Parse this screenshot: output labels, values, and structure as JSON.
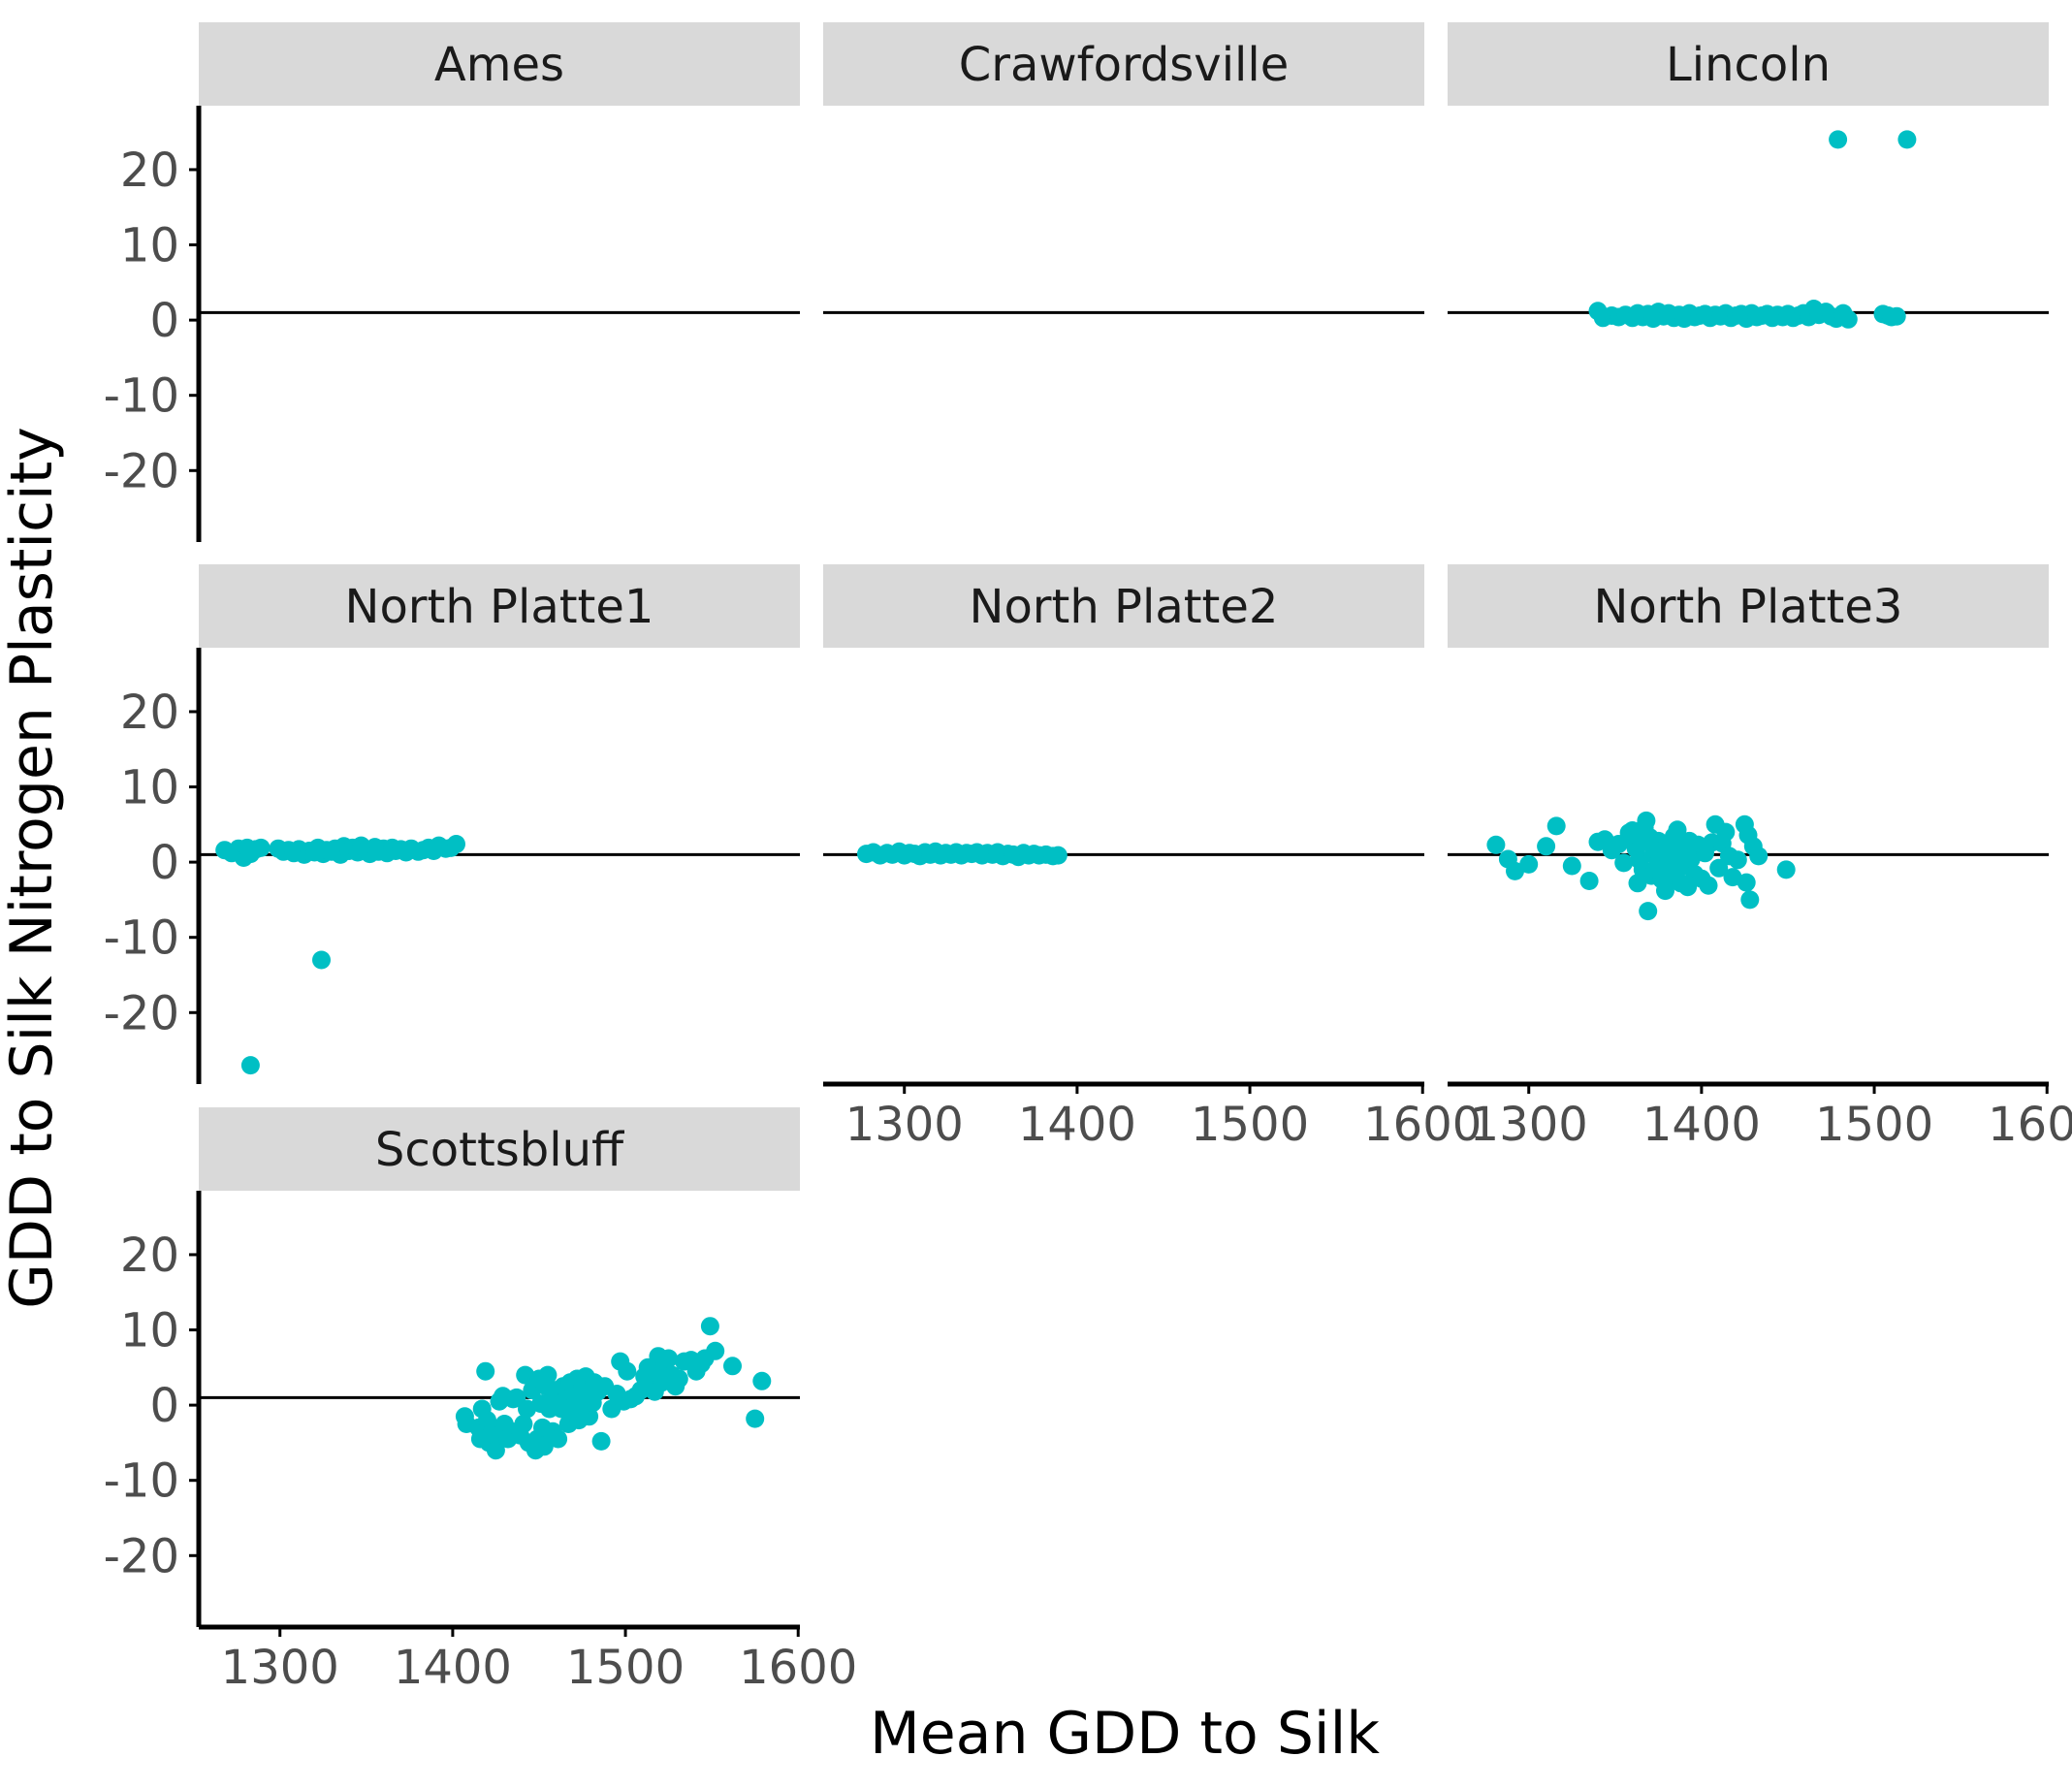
{
  "chart_data": {
    "type": "scatter",
    "title": "",
    "xlabel": "Mean GDD to Silk",
    "ylabel": "GDD to Silk Nitrogen Plasticity",
    "xlim": [
      1253,
      1601
    ],
    "ylim": [
      -29.5,
      28.5
    ],
    "x_ticks": [
      1300,
      1400,
      1500,
      1600
    ],
    "y_ticks": [
      -20,
      -10,
      0,
      10,
      20
    ],
    "x_tick_labels": [
      "1300",
      "1400",
      "1500",
      "1600"
    ],
    "y_tick_labels": [
      "-20",
      "-10",
      "0",
      "10",
      "20"
    ],
    "reference_line_y": 1,
    "grid": false,
    "legend": "none",
    "colors": {
      "points": "#00BFC4",
      "strip": "#D9D9D9",
      "axis": "#000000"
    },
    "facet_layout": {
      "rows": 3,
      "cols": 3
    },
    "panels": [
      {
        "name": "Ames",
        "row": 0,
        "col": 0,
        "points": []
      },
      {
        "name": "Crawfordsville",
        "row": 0,
        "col": 1,
        "points": []
      },
      {
        "name": "Lincoln",
        "row": 0,
        "col": 2,
        "points": [
          [
            1340,
            1.2
          ],
          [
            1343,
            0.3
          ],
          [
            1348,
            0.6
          ],
          [
            1352,
            0.4
          ],
          [
            1356,
            0.7
          ],
          [
            1360,
            0.3
          ],
          [
            1363,
            0.9
          ],
          [
            1366,
            0.4
          ],
          [
            1369,
            0.8
          ],
          [
            1372,
            0.2
          ],
          [
            1375,
            1.1
          ],
          [
            1378,
            0.5
          ],
          [
            1381,
            0.9
          ],
          [
            1384,
            0.3
          ],
          [
            1387,
            0.7
          ],
          [
            1390,
            0.2
          ],
          [
            1393,
            0.9
          ],
          [
            1396,
            0.4
          ],
          [
            1399,
            0.6
          ],
          [
            1402,
            0.8
          ],
          [
            1405,
            0.3
          ],
          [
            1408,
            0.7
          ],
          [
            1411,
            0.5
          ],
          [
            1414,
            0.9
          ],
          [
            1417,
            0.3
          ],
          [
            1420,
            0.6
          ],
          [
            1423,
            0.8
          ],
          [
            1426,
            0.2
          ],
          [
            1429,
            0.9
          ],
          [
            1432,
            0.4
          ],
          [
            1435,
            0.6
          ],
          [
            1438,
            0.8
          ],
          [
            1441,
            0.3
          ],
          [
            1444,
            0.7
          ],
          [
            1447,
            0.4
          ],
          [
            1450,
            0.8
          ],
          [
            1453,
            0.3
          ],
          [
            1456,
            0.6
          ],
          [
            1459,
            0.9
          ],
          [
            1462,
            0.4
          ],
          [
            1465,
            1.5
          ],
          [
            1468,
            0.7
          ],
          [
            1472,
            1.1
          ],
          [
            1475,
            0.5
          ],
          [
            1478,
            0.2
          ],
          [
            1482,
            0.9
          ],
          [
            1485,
            0.1
          ],
          [
            1505,
            0.8
          ],
          [
            1508,
            0.6
          ],
          [
            1510,
            0.4
          ],
          [
            1513,
            0.5
          ],
          [
            1479,
            24
          ],
          [
            1519,
            24
          ]
        ]
      },
      {
        "name": "North Platte1",
        "row": 1,
        "col": 0,
        "points": [
          [
            1268,
            1.6
          ],
          [
            1272,
            1.2
          ],
          [
            1276,
            1.8
          ],
          [
            1279,
            0.6
          ],
          [
            1281,
            1.9
          ],
          [
            1283,
            1.1
          ],
          [
            1286,
            1.7
          ],
          [
            1289,
            1.9
          ],
          [
            1299,
            1.8
          ],
          [
            1302,
            1.4
          ],
          [
            1305,
            1.6
          ],
          [
            1308,
            1.2
          ],
          [
            1311,
            1.7
          ],
          [
            1314,
            1.0
          ],
          [
            1317,
            1.5
          ],
          [
            1320,
            1.3
          ],
          [
            1322,
            1.9
          ],
          [
            1325,
            1.1
          ],
          [
            1327,
            1.6
          ],
          [
            1330,
            1.4
          ],
          [
            1332,
            1.8
          ],
          [
            1335,
            1.0
          ],
          [
            1337,
            2.1
          ],
          [
            1340,
            1.5
          ],
          [
            1342,
            1.9
          ],
          [
            1345,
            1.3
          ],
          [
            1347,
            2.2
          ],
          [
            1350,
            1.6
          ],
          [
            1352,
            1.1
          ],
          [
            1355,
            2.0
          ],
          [
            1357,
            1.4
          ],
          [
            1360,
            1.8
          ],
          [
            1362,
            1.2
          ],
          [
            1365,
            1.9
          ],
          [
            1367,
            1.5
          ],
          [
            1370,
            1.7
          ],
          [
            1373,
            1.3
          ],
          [
            1376,
            1.8
          ],
          [
            1380,
            1.4
          ],
          [
            1383,
            1.6
          ],
          [
            1386,
            1.9
          ],
          [
            1389,
            1.5
          ],
          [
            1392,
            2.2
          ],
          [
            1396,
            1.8
          ],
          [
            1399,
            1.9
          ],
          [
            1402,
            2.4
          ],
          [
            1324,
            -13
          ],
          [
            1283,
            -27
          ]
        ]
      },
      {
        "name": "North Platte2",
        "row": 1,
        "col": 1,
        "points": [
          [
            1278,
            1.1
          ],
          [
            1282,
            1.3
          ],
          [
            1286,
            0.9
          ],
          [
            1290,
            1.2
          ],
          [
            1293,
            1.0
          ],
          [
            1297,
            1.4
          ],
          [
            1300,
            0.9
          ],
          [
            1303,
            1.2
          ],
          [
            1306,
            1.1
          ],
          [
            1309,
            0.8
          ],
          [
            1312,
            1.3
          ],
          [
            1315,
            1.0
          ],
          [
            1318,
            1.4
          ],
          [
            1321,
            0.9
          ],
          [
            1324,
            1.2
          ],
          [
            1327,
            1.0
          ],
          [
            1330,
            1.3
          ],
          [
            1333,
            0.9
          ],
          [
            1336,
            1.2
          ],
          [
            1339,
            1.1
          ],
          [
            1342,
            1.3
          ],
          [
            1345,
            0.9
          ],
          [
            1348,
            1.2
          ],
          [
            1351,
            1.0
          ],
          [
            1354,
            1.3
          ],
          [
            1357,
            0.8
          ],
          [
            1360,
            1.1
          ],
          [
            1363,
            1.0
          ],
          [
            1366,
            0.7
          ],
          [
            1369,
            1.2
          ],
          [
            1372,
            0.9
          ],
          [
            1375,
            1.1
          ],
          [
            1378,
            0.9
          ],
          [
            1382,
            1.0
          ],
          [
            1386,
            0.8
          ],
          [
            1389,
            0.9
          ]
        ]
      },
      {
        "name": "North Platte3",
        "row": 1,
        "col": 2,
        "points": [
          [
            1281,
            2.3
          ],
          [
            1288,
            0.4
          ],
          [
            1292,
            -1.2
          ],
          [
            1310,
            2.1
          ],
          [
            1300,
            -0.3
          ],
          [
            1316,
            4.8
          ],
          [
            1325,
            -0.5
          ],
          [
            1335,
            -2.5
          ],
          [
            1340,
            2.7
          ],
          [
            1344,
            3.0
          ],
          [
            1348,
            1.6
          ],
          [
            1352,
            2.4
          ],
          [
            1355,
            -0.1
          ],
          [
            1358,
            3.9
          ],
          [
            1360,
            4.2
          ],
          [
            1361,
            3.0
          ],
          [
            1362,
            1.8
          ],
          [
            1363,
            -2.8
          ],
          [
            1364,
            0.3
          ],
          [
            1365,
            2.6
          ],
          [
            1366,
            -1.0
          ],
          [
            1367,
            4.6
          ],
          [
            1368,
            5.5
          ],
          [
            1369,
            -6.5
          ],
          [
            1370,
            3.3
          ],
          [
            1371,
            -1.8
          ],
          [
            1372,
            1.0
          ],
          [
            1373,
            2.2
          ],
          [
            1374,
            -0.8
          ],
          [
            1375,
            2.8
          ],
          [
            1376,
            0.6
          ],
          [
            1377,
            -2.3
          ],
          [
            1378,
            1.6
          ],
          [
            1379,
            -3.8
          ],
          [
            1380,
            2.4
          ],
          [
            1381,
            0.1
          ],
          [
            1382,
            -2.0
          ],
          [
            1383,
            1.8
          ],
          [
            1384,
            3.4
          ],
          [
            1385,
            -1.4
          ],
          [
            1386,
            4.3
          ],
          [
            1387,
            0.8
          ],
          [
            1388,
            -2.8
          ],
          [
            1389,
            2.1
          ],
          [
            1390,
            -0.5
          ],
          [
            1391,
            1.5
          ],
          [
            1392,
            -3.3
          ],
          [
            1393,
            2.8
          ],
          [
            1394,
            0.4
          ],
          [
            1396,
            -1.6
          ],
          [
            1398,
            2.3
          ],
          [
            1400,
            -2.2
          ],
          [
            1402,
            1.2
          ],
          [
            1404,
            -3.1
          ],
          [
            1406,
            2.6
          ],
          [
            1408,
            5.0
          ],
          [
            1410,
            -0.8
          ],
          [
            1412,
            2.5
          ],
          [
            1414,
            4.0
          ],
          [
            1416,
            0.8
          ],
          [
            1418,
            -2.0
          ],
          [
            1421,
            0.3
          ],
          [
            1425,
            5.0
          ],
          [
            1426,
            -2.7
          ],
          [
            1427,
            3.6
          ],
          [
            1428,
            -5.0
          ],
          [
            1430,
            2.1
          ],
          [
            1433,
            0.8
          ],
          [
            1449,
            -1.0
          ]
        ]
      },
      {
        "name": "Scottsbluff",
        "row": 2,
        "col": 0,
        "points": [
          [
            1407,
            -1.5
          ],
          [
            1408,
            -2.5
          ],
          [
            1415,
            -3.0
          ],
          [
            1416,
            -4.5
          ],
          [
            1417,
            -0.5
          ],
          [
            1419,
            4.5
          ],
          [
            1420,
            -2.0
          ],
          [
            1421,
            -5.0
          ],
          [
            1423,
            -3.5
          ],
          [
            1425,
            -6.0
          ],
          [
            1426,
            -4.0
          ],
          [
            1427,
            0.5
          ],
          [
            1429,
            1.2
          ],
          [
            1430,
            -2.5
          ],
          [
            1432,
            -4.5
          ],
          [
            1434,
            -3.5
          ],
          [
            1435,
            0.8
          ],
          [
            1437,
            1.0
          ],
          [
            1439,
            -4.0
          ],
          [
            1441,
            -2.5
          ],
          [
            1442,
            4.0
          ],
          [
            1443,
            -0.5
          ],
          [
            1444,
            -5.0
          ],
          [
            1446,
            2.0
          ],
          [
            1448,
            -6.0
          ],
          [
            1449,
            -4.5
          ],
          [
            1450,
            3.5
          ],
          [
            1451,
            0.2
          ],
          [
            1452,
            -3.0
          ],
          [
            1453,
            -5.5
          ],
          [
            1454,
            2.5
          ],
          [
            1455,
            4.0
          ],
          [
            1456,
            -0.5
          ],
          [
            1457,
            0.5
          ],
          [
            1458,
            -3.5
          ],
          [
            1459,
            1.5
          ],
          [
            1460,
            2.0
          ],
          [
            1461,
            -4.5
          ],
          [
            1462,
            0.2
          ],
          [
            1463,
            -0.5
          ],
          [
            1464,
            2.5
          ],
          [
            1465,
            0.8
          ],
          [
            1466,
            1.5
          ],
          [
            1467,
            -2.5
          ],
          [
            1468,
            3.0
          ],
          [
            1469,
            -0.8
          ],
          [
            1470,
            2.0
          ],
          [
            1471,
            0.5
          ],
          [
            1472,
            3.5
          ],
          [
            1473,
            -2.0
          ],
          [
            1474,
            1.0
          ],
          [
            1475,
            2.5
          ],
          [
            1476,
            0.2
          ],
          [
            1477,
            3.8
          ],
          [
            1478,
            1.5
          ],
          [
            1479,
            -1.5
          ],
          [
            1480,
            2.0
          ],
          [
            1481,
            0.3
          ],
          [
            1482,
            3.0
          ],
          [
            1484,
            1.8
          ],
          [
            1486,
            -4.8
          ],
          [
            1488,
            2.5
          ],
          [
            1492,
            -0.5
          ],
          [
            1495,
            1.5
          ],
          [
            1497,
            5.8
          ],
          [
            1499,
            0.5
          ],
          [
            1501,
            4.5
          ],
          [
            1503,
            0.8
          ],
          [
            1506,
            1.2
          ],
          [
            1509,
            2.0
          ],
          [
            1511,
            3.8
          ],
          [
            1513,
            5.0
          ],
          [
            1515,
            3.2
          ],
          [
            1517,
            1.8
          ],
          [
            1518,
            2.8
          ],
          [
            1519,
            6.5
          ],
          [
            1520,
            4.5
          ],
          [
            1521,
            3.0
          ],
          [
            1523,
            5.5
          ],
          [
            1525,
            6.2
          ],
          [
            1527,
            4.0
          ],
          [
            1529,
            2.5
          ],
          [
            1531,
            3.5
          ],
          [
            1534,
            5.8
          ],
          [
            1538,
            6.0
          ],
          [
            1541,
            4.5
          ],
          [
            1544,
            5.5
          ],
          [
            1546,
            6.2
          ],
          [
            1549,
            10.5
          ],
          [
            1552,
            7.2
          ],
          [
            1562,
            5.2
          ],
          [
            1575,
            -1.8
          ],
          [
            1579,
            3.2
          ]
        ]
      }
    ]
  }
}
